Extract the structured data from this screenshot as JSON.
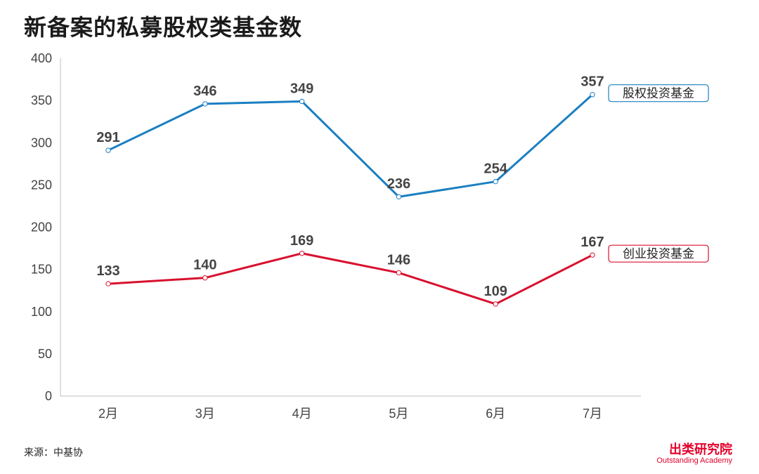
{
  "chart_data": {
    "type": "line",
    "title": "新备案的私募股权类基金数",
    "categories": [
      "2月",
      "3月",
      "4月",
      "5月",
      "6月",
      "7月"
    ],
    "ylim": [
      0,
      400
    ],
    "yticks": [
      0,
      50,
      100,
      150,
      200,
      250,
      300,
      350,
      400
    ],
    "grid": false,
    "legend_placement": "right, at series ends",
    "series": [
      {
        "name": "股权投资基金",
        "color": "#1a7fc1",
        "values": [
          291,
          346,
          349,
          236,
          254,
          357
        ],
        "labels": [
          "291",
          "346",
          "349",
          "236",
          "254",
          "357"
        ]
      },
      {
        "name": "创业投资基金",
        "color": "#d9102e",
        "values": [
          133,
          140,
          169,
          146,
          109,
          167
        ],
        "labels": [
          "133",
          "140",
          "169",
          "146",
          "109",
          "167"
        ]
      }
    ]
  },
  "footer": {
    "source": "来源：中基协",
    "brand_name": "出类研究院",
    "brand_tagline": "Outstanding Academy"
  }
}
